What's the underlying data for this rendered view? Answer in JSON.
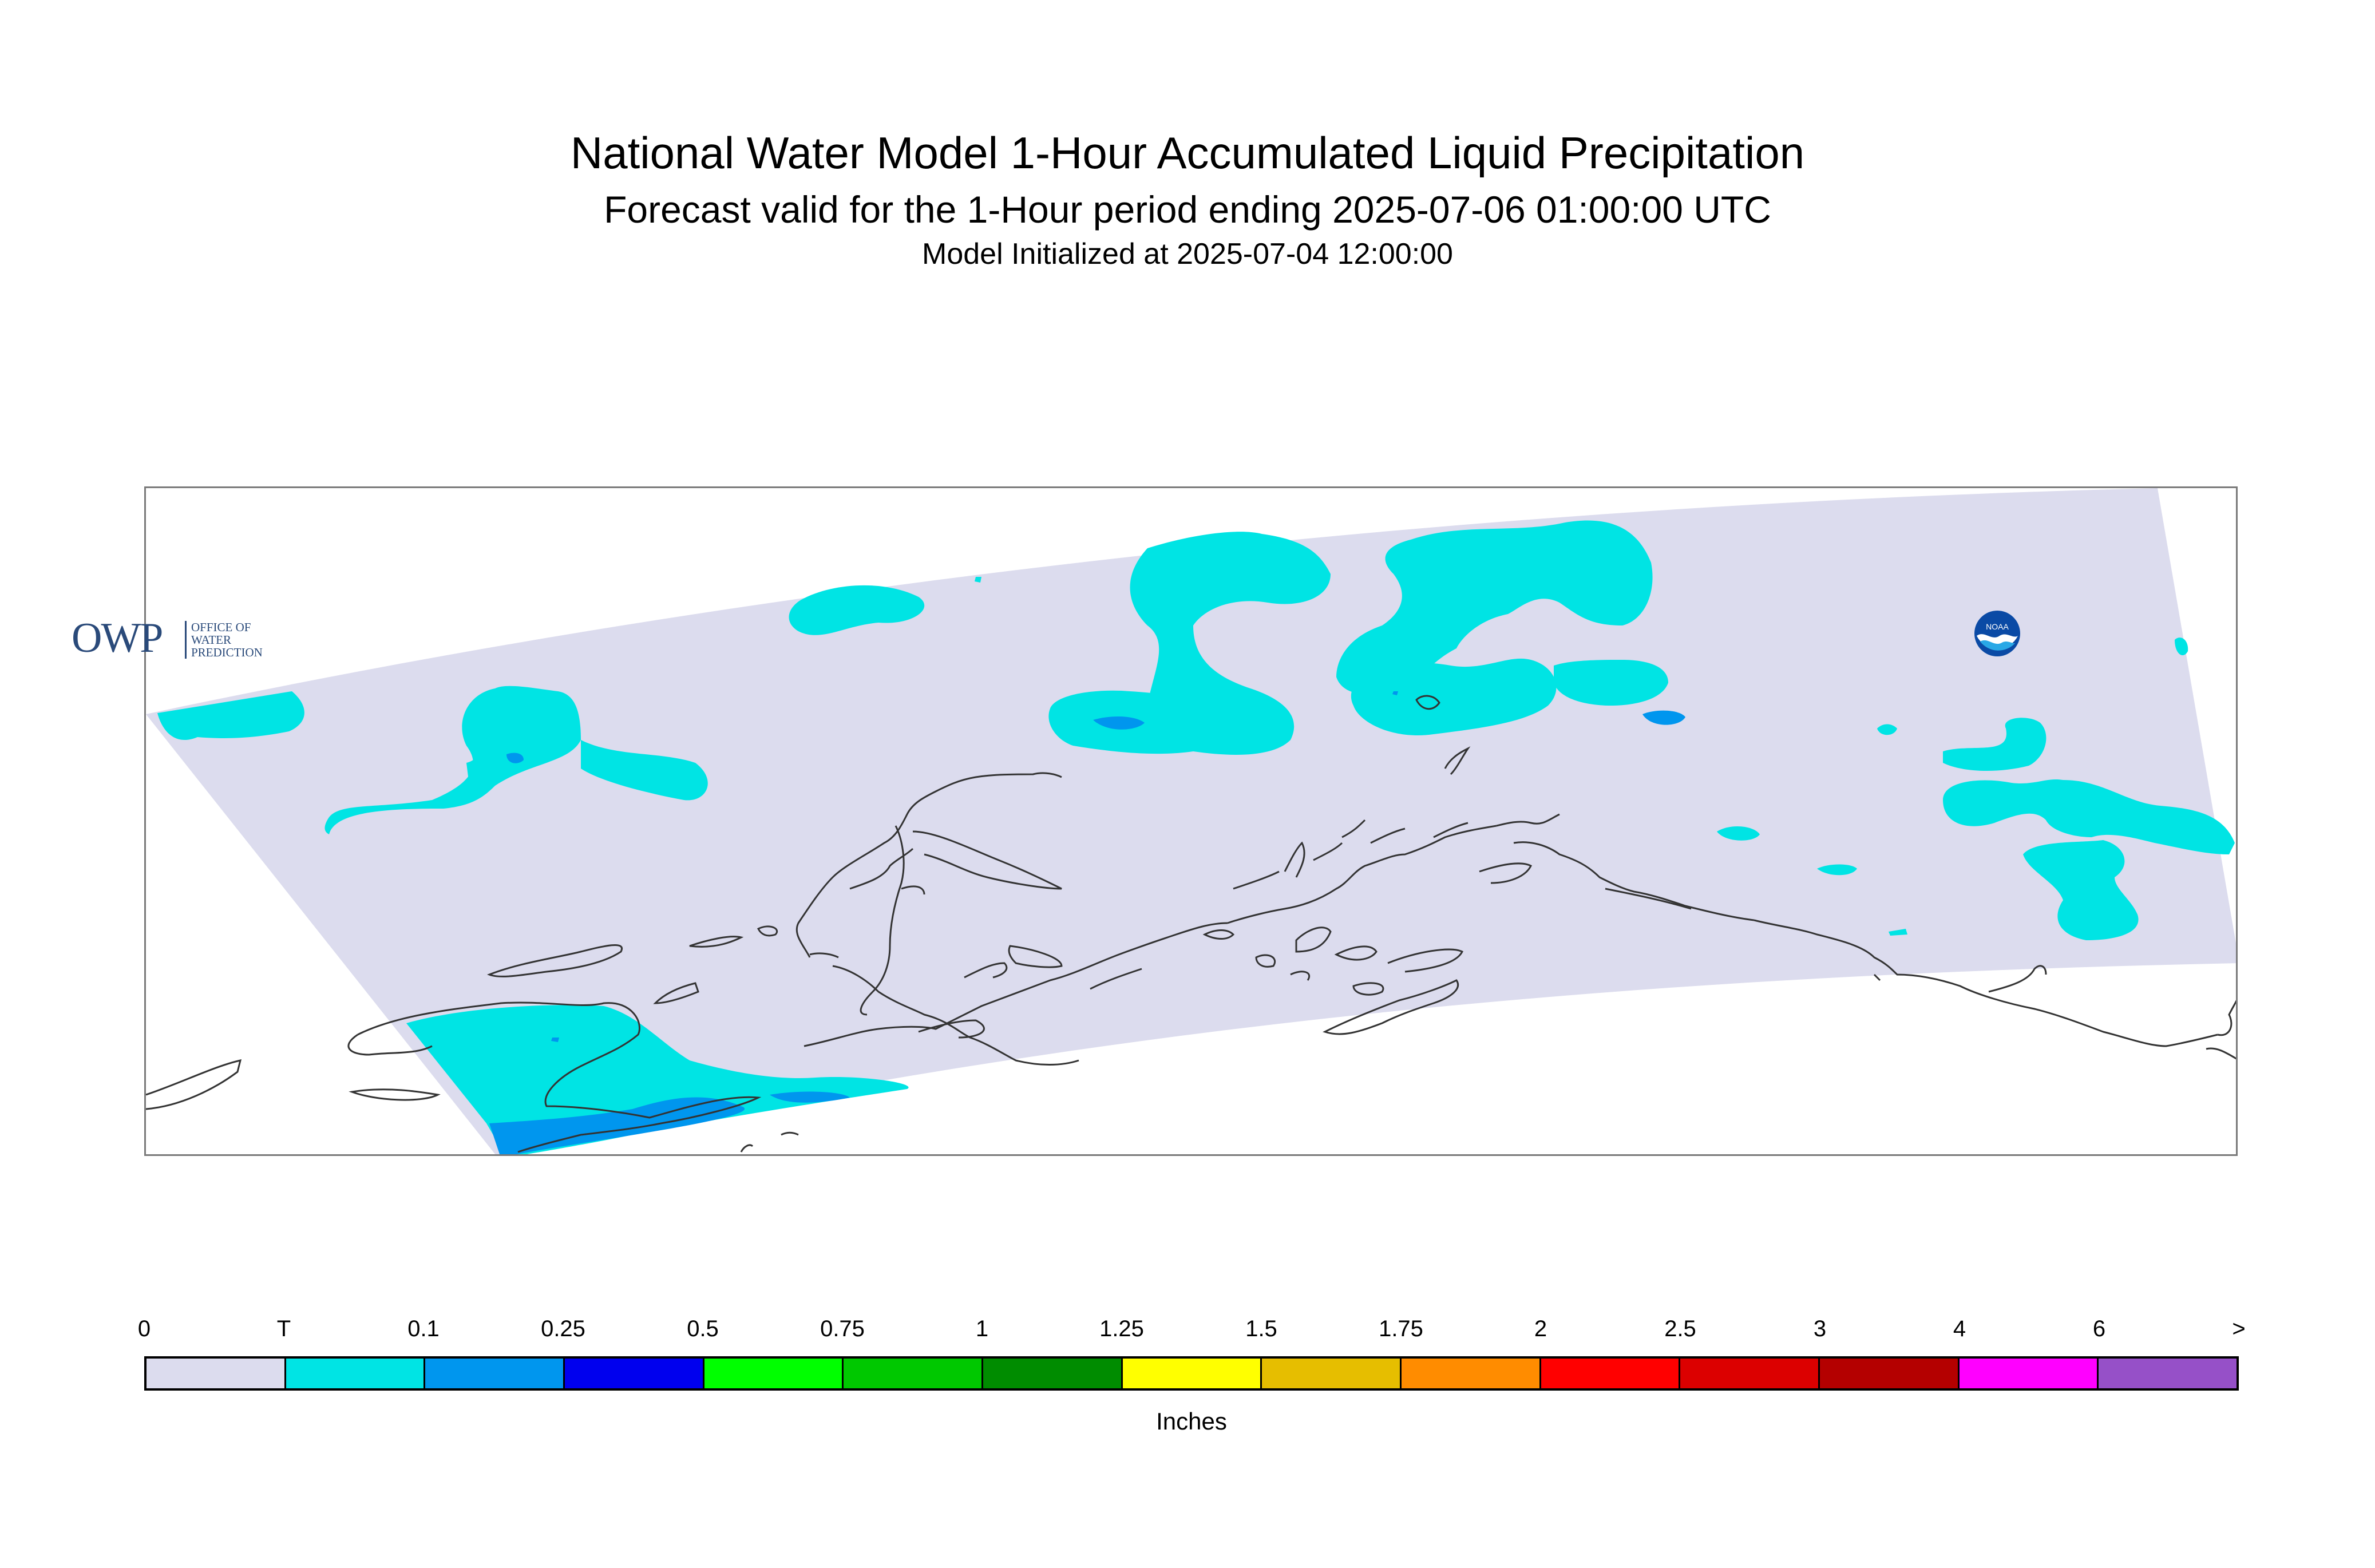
{
  "header": {
    "title": "National Water Model 1-Hour Accumulated Liquid Precipitation",
    "subtitle": "Forecast valid for the 1-Hour period ending 2025-07-06 01:00:00 UTC",
    "init": "Model Initialized at 2025-07-04 12:00:00"
  },
  "map": {
    "region": "Alaska",
    "domain_color": "#dcdcee",
    "coastline_color": "#333333",
    "precip_colors": {
      "trace": "#00e4e4",
      "light": "#0096ee"
    }
  },
  "legend": {
    "labels": [
      "0",
      "T",
      "0.1",
      "0.25",
      "0.5",
      "0.75",
      "1",
      "1.25",
      "1.5",
      "1.75",
      "2",
      "2.5",
      "3",
      "4",
      "6",
      ">"
    ],
    "colors": [
      "#dcdcee",
      "#00e4e4",
      "#0096ee",
      "#0000ee",
      "#00ff00",
      "#00c800",
      "#008c00",
      "#ffff00",
      "#e6be00",
      "#ff8c00",
      "#ff0000",
      "#dc0000",
      "#b40000",
      "#ff00ff",
      "#9650c8"
    ],
    "units": "Inches"
  },
  "logos": {
    "owp_letters": "OWP",
    "owp_sub": [
      "OFFICE OF",
      "WATER",
      "PREDICTION"
    ],
    "noaa": "NOAA"
  }
}
